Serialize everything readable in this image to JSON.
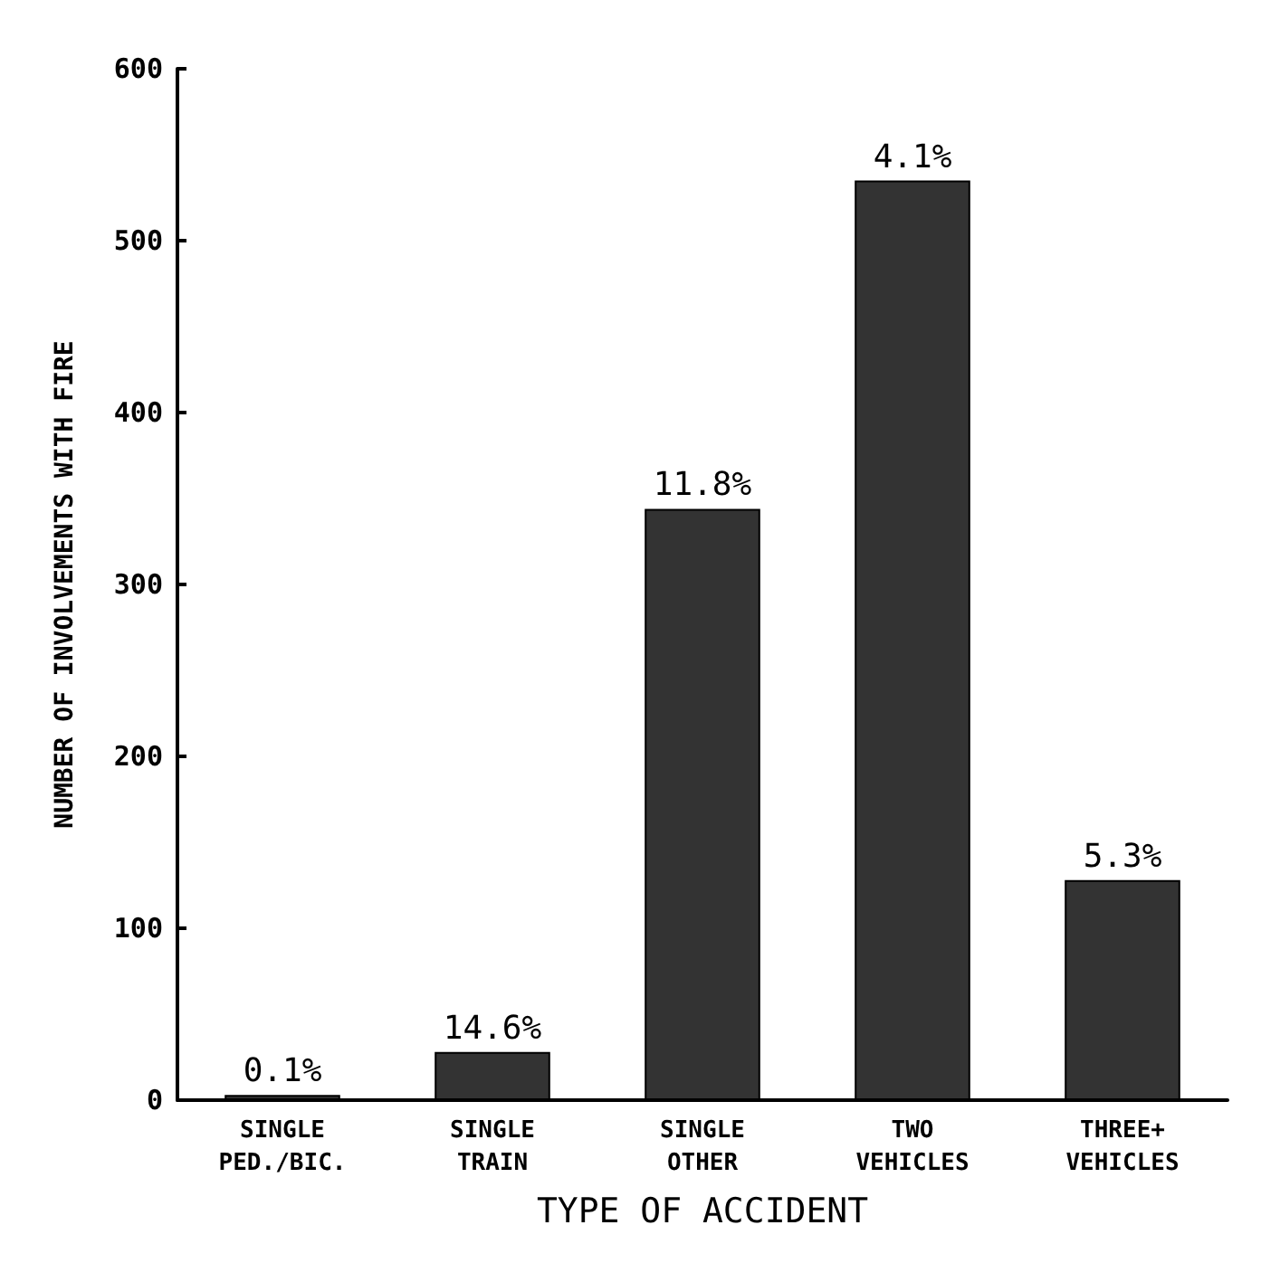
{
  "chart_data": {
    "type": "bar",
    "xlabel": "TYPE OF ACCIDENT",
    "ylabel": "NUMBER OF INVOLVEMENTS WITH FIRE",
    "categories": [
      "SINGLE\nPED./BIC.",
      "SINGLE\nTRAIN",
      "SINGLE\nOTHER",
      "TWO\nVEHICLES",
      "THREE+\nVEHICLES"
    ],
    "values": [
      3,
      28,
      344,
      535,
      128
    ],
    "annotations": [
      {
        "text": "0.1%",
        "x": "SINGLE\nPED./BIC.",
        "y": 3
      },
      {
        "text": "14.6%",
        "x": "SINGLE\nTRAIN",
        "y": 28
      },
      {
        "text": "11.8%",
        "x": "SINGLE\nOTHER",
        "y": 344
      },
      {
        "text": "4.1%",
        "x": "TWO\nVEHICLES",
        "y": 535
      },
      {
        "text": "5.3%",
        "x": "THREE+\nVEHICLES",
        "y": 128
      }
    ],
    "color": "#333333",
    "ylim": [
      0,
      600
    ],
    "yticks": [
      0,
      100,
      200,
      300,
      400,
      500,
      600
    ],
    "grid": false
  }
}
